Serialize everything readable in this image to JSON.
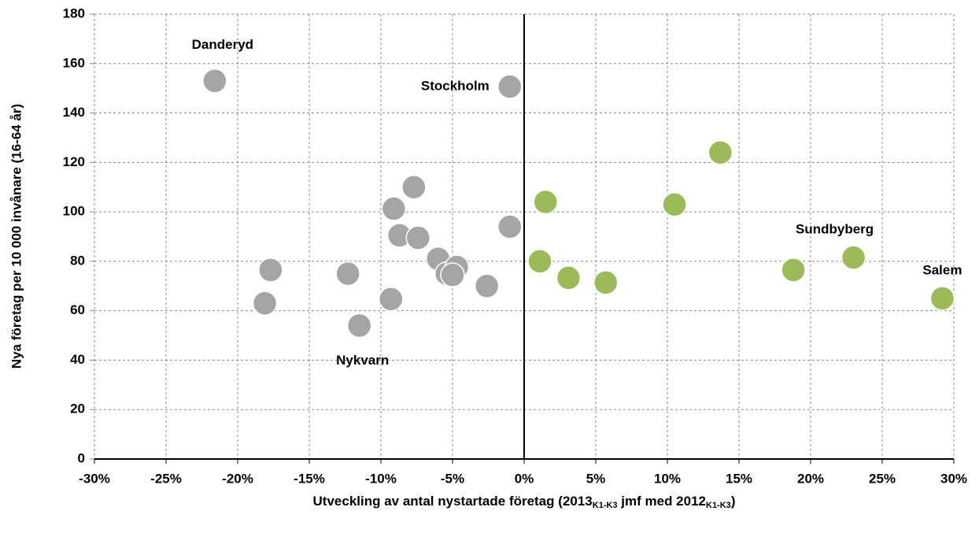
{
  "chart_data": {
    "type": "scatter",
    "ylabel": "Nya företag per 10 000 invånare (16-64 år)",
    "xlabel": [
      {
        "text": "Utveckling av antal nystartade företag (2013"
      },
      {
        "text": "K1-K3",
        "sub": true
      },
      {
        "text": " jmf med 2012"
      },
      {
        "text": "K1-K3",
        "sub": true
      },
      {
        "text": ")"
      }
    ],
    "xlim": [
      -30,
      30
    ],
    "xticks": [
      {
        "value": -30,
        "label": "-30%"
      },
      {
        "value": -25,
        "label": "-25%"
      },
      {
        "value": -20,
        "label": "-20%"
      },
      {
        "value": -15,
        "label": "-15%"
      },
      {
        "value": -10,
        "label": "-10%"
      },
      {
        "value": -5,
        "label": "-5%"
      },
      {
        "value": 0,
        "label": "0%"
      },
      {
        "value": 5,
        "label": "5%"
      },
      {
        "value": 10,
        "label": "10%"
      },
      {
        "value": 15,
        "label": "15%"
      },
      {
        "value": 20,
        "label": "20%"
      },
      {
        "value": 25,
        "label": "25%"
      },
      {
        "value": 30,
        "label": "30%"
      }
    ],
    "ylim": [
      0,
      180
    ],
    "yticks": [
      0,
      20,
      40,
      60,
      80,
      100,
      120,
      140,
      160,
      180
    ],
    "grid": true,
    "series": [
      {
        "color": "#a5a5a5",
        "x": [
          -21.6,
          -1.0,
          -11.5,
          -17.7,
          -18.1,
          -12.3,
          -9.3,
          -9.1,
          -8.7,
          -7.7,
          -7.4,
          -6.0,
          -5.4,
          -4.7,
          -5.0,
          -2.6,
          -1.0
        ],
        "values": [
          153,
          150.7,
          54,
          76.5,
          63,
          75,
          64.7,
          101.3,
          90.5,
          110,
          89.5,
          81,
          75,
          77.7,
          74.5,
          70,
          94
        ],
        "labels": [
          "Danderyd",
          "Stockholm",
          "Nykvarn",
          null,
          null,
          null,
          null,
          null,
          null,
          null,
          null,
          null,
          null,
          null,
          null,
          null,
          null
        ]
      },
      {
        "color": "#9bbb59",
        "x": [
          1.1,
          1.5,
          3.1,
          5.7,
          10.5,
          13.7,
          18.8,
          23.0,
          29.2
        ],
        "values": [
          80,
          104,
          73.3,
          71.4,
          103,
          124,
          76.5,
          81.5,
          65
        ],
        "labels": [
          null,
          null,
          null,
          null,
          null,
          null,
          null,
          "Sundbyberg",
          "Salem"
        ]
      }
    ]
  }
}
